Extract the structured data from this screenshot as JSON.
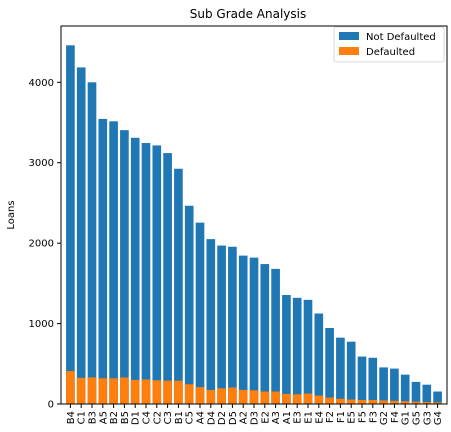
{
  "chart_data": {
    "type": "bar",
    "stacked": true,
    "title": "Sub Grade Analysis",
    "xlabel": "",
    "ylabel": "Loans",
    "ylim": [
      0,
      4700
    ],
    "yticks": [
      0,
      1000,
      2000,
      3000,
      4000
    ],
    "categories": [
      "B4",
      "C1",
      "B3",
      "A5",
      "B2",
      "B5",
      "D1",
      "C4",
      "C2",
      "C3",
      "B1",
      "C5",
      "A4",
      "D4",
      "D2",
      "D5",
      "A2",
      "D3",
      "E2",
      "A3",
      "A1",
      "E3",
      "E1",
      "E4",
      "F2",
      "F1",
      "E5",
      "F5",
      "F3",
      "G2",
      "F4",
      "G1",
      "G5",
      "G3",
      "G4"
    ],
    "series": [
      {
        "name": "Not Defaulted",
        "color": "#1f77b4",
        "values": [
          4460,
          4185,
          4000,
          3545,
          3515,
          3405,
          3310,
          3245,
          3215,
          3120,
          2925,
          2465,
          2255,
          2050,
          1970,
          1955,
          1845,
          1820,
          1740,
          1680,
          1355,
          1320,
          1295,
          1125,
          945,
          825,
          775,
          590,
          575,
          455,
          440,
          365,
          275,
          240,
          155
        ]
      },
      {
        "name": "Defaulted",
        "color": "#ff7f0e",
        "values": [
          410,
          325,
          330,
          320,
          320,
          330,
          300,
          305,
          295,
          290,
          290,
          245,
          210,
          175,
          195,
          205,
          175,
          170,
          155,
          155,
          125,
          120,
          130,
          105,
          80,
          65,
          55,
          50,
          50,
          45,
          40,
          35,
          30,
          25,
          20
        ]
      }
    ],
    "legend": "upper-right",
    "grid": false
  }
}
